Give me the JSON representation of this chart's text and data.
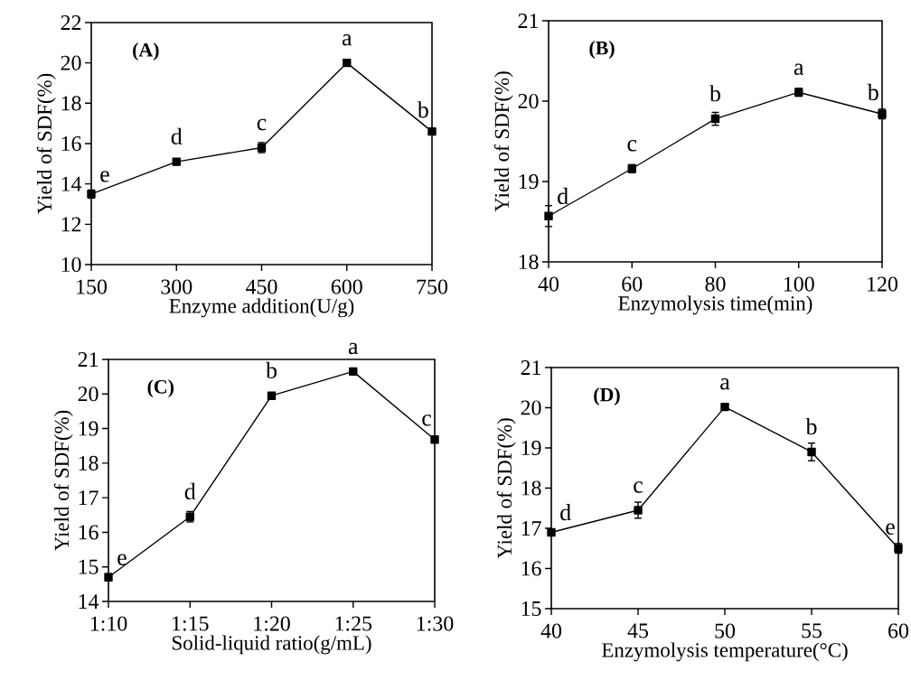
{
  "chart_data": [
    {
      "type": "line",
      "title": "(A)",
      "xlabel": "Enzyme addition(U/g)",
      "ylabel": "Yield of SDF(%)",
      "color": "#000000",
      "marker": "square",
      "line_style": "solid",
      "x": [
        150,
        300,
        450,
        600,
        750
      ],
      "values": [
        13.5,
        15.1,
        15.8,
        20.0,
        16.6
      ],
      "errors": [
        0.2,
        0.15,
        0.25,
        0.1,
        0.1
      ],
      "xlim": [
        150,
        750
      ],
      "ylim": [
        10,
        22
      ],
      "xticks": [
        150,
        300,
        450,
        600,
        750
      ],
      "yticks": [
        10,
        12,
        14,
        16,
        18,
        20,
        22
      ],
      "annotations": [
        {
          "text": "e",
          "x": 150,
          "y": 13.5
        },
        {
          "text": "d",
          "x": 300,
          "y": 15.1
        },
        {
          "text": "c",
          "x": 450,
          "y": 15.8
        },
        {
          "text": "a",
          "x": 600,
          "y": 20.0
        },
        {
          "text": "b",
          "x": 750,
          "y": 16.6
        }
      ]
    },
    {
      "type": "line",
      "title": "(B)",
      "xlabel": "Enzymolysis time(min)",
      "ylabel": "Yield of SDF(%)",
      "color": "#000000",
      "marker": "square",
      "line_style": "solid",
      "x": [
        40,
        60,
        80,
        100,
        120
      ],
      "values": [
        18.57,
        19.16,
        19.78,
        20.11,
        19.84
      ],
      "errors": [
        0.13,
        0.05,
        0.08,
        0.05,
        0.06
      ],
      "xlim": [
        40,
        120
      ],
      "ylim": [
        18,
        21
      ],
      "xticks": [
        40,
        60,
        80,
        100,
        120
      ],
      "yticks": [
        18,
        19,
        20,
        21
      ],
      "annotations": [
        {
          "text": "d",
          "x": 40,
          "y": 18.57
        },
        {
          "text": "c",
          "x": 60,
          "y": 19.16
        },
        {
          "text": "b",
          "x": 80,
          "y": 19.78
        },
        {
          "text": "a",
          "x": 100,
          "y": 20.11
        },
        {
          "text": "b",
          "x": 120,
          "y": 19.84
        }
      ]
    },
    {
      "type": "line",
      "title": "(C)",
      "xlabel": "Solid-liquid ratio(g/mL)",
      "ylabel": "Yield of SDF(%)",
      "color": "#000000",
      "marker": "square",
      "line_style": "solid",
      "categories": [
        "1:10",
        "1:15",
        "1:20",
        "1:25",
        "1:30"
      ],
      "values": [
        14.7,
        16.45,
        19.95,
        20.65,
        18.68
      ],
      "errors": [
        0.1,
        0.15,
        0.08,
        0.08,
        0.05
      ],
      "ylim": [
        14,
        21
      ],
      "yticks": [
        14,
        15,
        16,
        17,
        18,
        19,
        20,
        21
      ],
      "annotations": [
        {
          "text": "e",
          "x": "1:10",
          "y": 14.7
        },
        {
          "text": "d",
          "x": "1:15",
          "y": 16.45
        },
        {
          "text": "b",
          "x": "1:20",
          "y": 19.95
        },
        {
          "text": "a",
          "x": "1:25",
          "y": 20.65
        },
        {
          "text": "c",
          "x": "1:30",
          "y": 18.68
        }
      ]
    },
    {
      "type": "line",
      "title": "(D)",
      "xlabel": "Enzymolysis temperature(°C)",
      "ylabel": "Yield of SDF(%)",
      "color": "#000000",
      "marker": "square",
      "line_style": "solid",
      "x": [
        40,
        45,
        50,
        55,
        60
      ],
      "values": [
        16.9,
        17.45,
        20.02,
        18.9,
        16.5
      ],
      "errors": [
        0.05,
        0.2,
        0.08,
        0.22,
        0.12
      ],
      "xlim": [
        40,
        60
      ],
      "ylim": [
        15,
        21
      ],
      "xticks": [
        40,
        45,
        50,
        55,
        60
      ],
      "yticks": [
        15,
        16,
        17,
        18,
        19,
        20,
        21
      ],
      "annotations": [
        {
          "text": "d",
          "x": 40,
          "y": 16.9
        },
        {
          "text": "c",
          "x": 45,
          "y": 17.45
        },
        {
          "text": "a",
          "x": 50,
          "y": 20.02
        },
        {
          "text": "b",
          "x": 55,
          "y": 18.9
        },
        {
          "text": "e",
          "x": 60,
          "y": 16.5
        }
      ]
    }
  ]
}
